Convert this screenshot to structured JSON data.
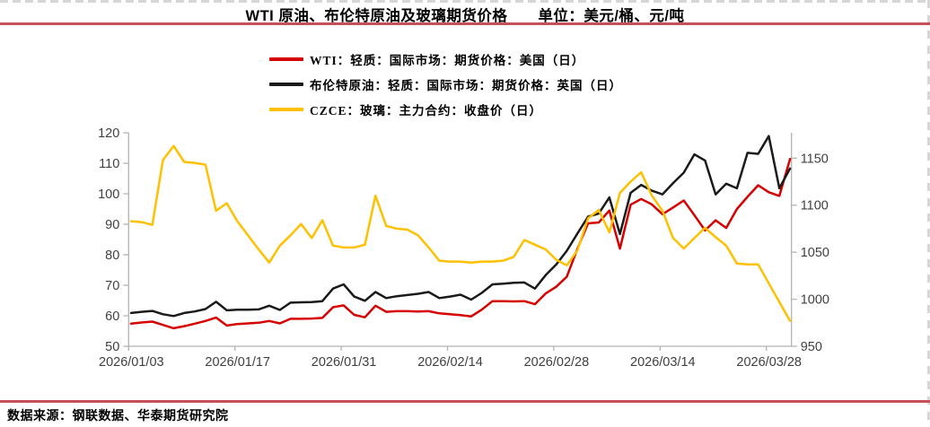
{
  "page": {
    "footer_source": "数据来源：钢联数据、华泰期货研究院"
  },
  "style": {
    "accent_rule": "#c4505a",
    "dash_border": "#d6d6d6",
    "axis_line": "#b3b3b3",
    "tick_text": "#3f3f3f",
    "wti_red": "#d60000",
    "brent_black": "#1a1a1a",
    "glass_gold": "#ffc000"
  },
  "chart_data": {
    "type": "line",
    "title": "WTI 原油、布伦特原油及玻璃期货价格",
    "unit_label": "单位：美元/桶、元/吨",
    "grid": false,
    "legend_position": "top-left",
    "x_tick_labels": [
      "2026/01/03",
      "2026/01/17",
      "2026/01/31",
      "2026/02/14",
      "2026/02/28",
      "2026/03/14",
      "2026/03/28"
    ],
    "x_tick_positions": [
      0,
      10,
      20,
      30,
      40,
      50,
      60
    ],
    "n_points": 63,
    "left_axis": {
      "range": [
        50,
        120
      ],
      "ticks": [
        50,
        60,
        70,
        80,
        90,
        100,
        110,
        120
      ],
      "label": "美元/桶"
    },
    "right_axis": {
      "range": [
        950,
        1177
      ],
      "ticks": [
        950,
        1000,
        1050,
        1100,
        1150
      ],
      "label": "元/吨"
    },
    "series": [
      {
        "name": "WTI：轻质：国际市场：期货价格：美国（日）",
        "axis": "left",
        "color": "#d60000",
        "values": [
          57.4,
          57.8,
          58.1,
          57.0,
          55.9,
          56.6,
          57.4,
          58.3,
          59.4,
          56.8,
          57.3,
          57.5,
          57.7,
          58.3,
          57.5,
          59.0,
          59.0,
          59.1,
          59.3,
          62.8,
          63.4,
          60.3,
          59.5,
          63.3,
          61.3,
          61.5,
          61.5,
          61.4,
          61.5,
          60.8,
          60.5,
          60.2,
          59.8,
          62.0,
          64.8,
          64.8,
          64.7,
          64.8,
          63.8,
          67.3,
          69.5,
          72.8,
          82.0,
          90.3,
          90.6,
          94.5,
          82.0,
          96.4,
          98.3,
          96.5,
          93.3,
          95.5,
          97.8,
          93.0,
          88.0,
          91.3,
          88.8,
          95.0,
          99.0,
          102.8,
          100.5,
          99.3,
          111.4
        ]
      },
      {
        "name": "布伦特原油：轻质：国际市场：期货价格：英国（日）",
        "axis": "left",
        "color": "#1a1a1a",
        "values": [
          60.9,
          61.3,
          61.6,
          60.5,
          59.9,
          60.9,
          61.4,
          62.2,
          64.6,
          61.8,
          62.0,
          62.0,
          62.1,
          63.3,
          61.9,
          64.3,
          64.4,
          64.5,
          64.8,
          68.9,
          70.3,
          66.3,
          64.9,
          67.8,
          65.8,
          66.4,
          66.8,
          67.2,
          67.8,
          65.8,
          66.3,
          66.9,
          65.3,
          67.5,
          70.3,
          70.5,
          70.8,
          70.9,
          68.9,
          73.3,
          76.8,
          81.3,
          87.0,
          92.5,
          93.5,
          98.8,
          86.8,
          100.3,
          102.9,
          101.0,
          99.8,
          103.5,
          106.9,
          112.9,
          110.9,
          99.8,
          103.3,
          101.8,
          113.4,
          113.1,
          118.9,
          101.8,
          108.3
        ]
      },
      {
        "name": "CZCE：玻璃：主力合约：收盘价（日）",
        "axis": "right",
        "color": "#ffc000",
        "values": [
          1083,
          1082,
          1079,
          1148,
          1163,
          1146,
          1145,
          1143,
          1094,
          1102,
          1083,
          1068,
          1053,
          1039,
          1057,
          1068,
          1080,
          1065,
          1084,
          1057,
          1055,
          1055,
          1058,
          1110,
          1078,
          1075,
          1074,
          1068,
          1055,
          1041,
          1040,
          1040,
          1039,
          1040,
          1040,
          1041,
          1045,
          1063,
          1058,
          1053,
          1042,
          1036,
          1052,
          1086,
          1095,
          1071,
          1113,
          1125,
          1135,
          1110,
          1094,
          1065,
          1054,
          1065,
          1076,
          1066,
          1057,
          1038,
          1037,
          1037,
          1017,
          997,
          977
        ]
      }
    ]
  }
}
